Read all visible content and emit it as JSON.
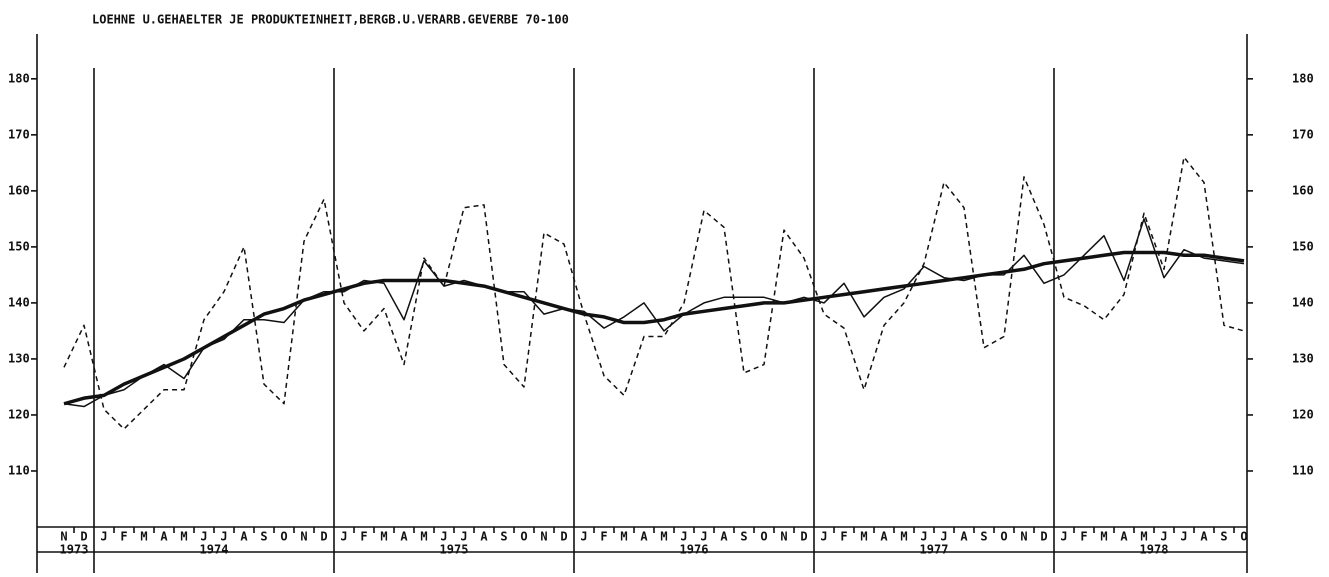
{
  "chart_data": {
    "type": "line",
    "title": "LOEHNE U.GEHAELTER JE PRODUKTEINHEIT,BERGB.U.VERARB.GEVERBE 70-100",
    "categories": [
      "N",
      "D",
      "J",
      "F",
      "M",
      "A",
      "M",
      "J",
      "J",
      "A",
      "S",
      "O",
      "N",
      "D",
      "J",
      "F",
      "M",
      "A",
      "M",
      "J",
      "J",
      "A",
      "S",
      "O",
      "N",
      "D",
      "J",
      "F",
      "M",
      "A",
      "M",
      "J",
      "J",
      "A",
      "S",
      "O",
      "N",
      "D",
      "J",
      "F",
      "M",
      "A",
      "M",
      "J",
      "J",
      "A",
      "S",
      "O",
      "N",
      "D",
      "J",
      "F",
      "M",
      "A",
      "M",
      "J",
      "J",
      "A",
      "S",
      "O"
    ],
    "years": [
      "1973",
      "1974",
      "1975",
      "1976",
      "1977",
      "1978"
    ],
    "ylim": [
      100,
      188
    ],
    "yticks": [
      110,
      120,
      130,
      140,
      150,
      160,
      170,
      180
    ],
    "series": [
      {
        "color": "#111",
        "dash": true,
        "width": 1.5,
        "values": [
          128.5,
          136,
          121,
          117.5,
          121,
          124.5,
          124.5,
          137,
          142,
          150,
          125.5,
          122,
          151,
          158.5,
          140,
          135,
          139,
          129,
          148,
          143,
          157,
          157.5,
          129,
          125,
          152.5,
          150.5,
          138,
          127,
          123.5,
          134,
          134,
          140,
          156.5,
          153.5,
          127.5,
          129,
          153,
          148,
          138,
          135.5,
          124.5,
          136,
          140,
          147,
          161.5,
          157,
          132,
          134,
          162.5,
          154,
          141,
          139.5,
          137,
          141.5,
          156,
          146,
          166,
          161.5,
          136,
          135
        ]
      },
      {
        "color": "#111",
        "dash": false,
        "width": 1.5,
        "values": [
          122,
          121.5,
          123.5,
          124.5,
          127,
          129,
          126.5,
          132,
          133.5,
          137,
          137,
          136.5,
          140.5,
          142,
          142,
          144,
          143.5,
          137,
          147.5,
          143,
          144,
          143,
          142,
          142,
          138,
          139,
          138.5,
          135.5,
          137.5,
          140,
          135,
          138,
          140,
          141,
          141,
          141,
          140,
          141,
          140,
          143.5,
          137.5,
          141,
          142.5,
          146.5,
          144.5,
          144,
          145,
          145,
          148.5,
          143.5,
          145,
          148.5,
          152,
          144,
          155,
          144.5,
          149.5,
          148,
          147.5,
          147
        ]
      },
      {
        "color": "#111",
        "dash": false,
        "width": 3.5,
        "values": [
          122,
          123,
          123.5,
          125.5,
          127,
          128.5,
          130,
          132,
          134,
          136,
          138,
          139,
          140.5,
          141.5,
          142.5,
          143.5,
          144,
          144,
          144,
          144,
          143.5,
          143,
          142,
          141,
          140,
          139,
          138,
          137.5,
          136.5,
          136.5,
          137,
          138,
          138.5,
          139,
          139.5,
          140,
          140,
          140.5,
          141,
          141.5,
          142,
          142.5,
          143,
          143.5,
          144,
          144.5,
          145,
          145.5,
          146,
          147,
          147.5,
          148,
          148.5,
          149,
          149,
          149,
          148.5,
          148.5,
          148,
          147.5
        ]
      }
    ]
  }
}
